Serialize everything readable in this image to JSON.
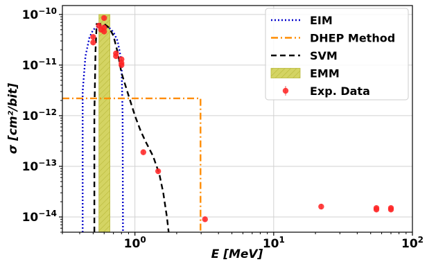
{
  "chart_data": {
    "type": "line",
    "xlabel": "E [MeV]",
    "ylabel": "σ [cm²/bit]",
    "x_scale": "log",
    "y_scale": "log",
    "xlim": [
      0.3,
      100
    ],
    "ylim": [
      5e-15,
      1.5e-10
    ],
    "grid": true,
    "legend_position": "top-right",
    "x_ticks": [
      {
        "value": 1,
        "base": "10",
        "exp": "0"
      },
      {
        "value": 10,
        "base": "10",
        "exp": "1"
      },
      {
        "value": 100,
        "base": "10",
        "exp": "2"
      }
    ],
    "y_ticks": [
      {
        "value": 1e-14,
        "base": "10",
        "exp": "−14"
      },
      {
        "value": 1e-13,
        "base": "10",
        "exp": "−13"
      },
      {
        "value": 1e-12,
        "base": "10",
        "exp": "−12"
      },
      {
        "value": 1e-11,
        "base": "10",
        "exp": "−11"
      },
      {
        "value": 1e-10,
        "base": "10",
        "exp": "−10"
      }
    ],
    "series": [
      {
        "name": "EIM",
        "kind": "line",
        "style": "dotted",
        "color": "#0000cc",
        "points": [
          [
            0.42,
            5e-15
          ],
          [
            0.42,
            3e-12
          ],
          [
            0.44,
            1.5e-11
          ],
          [
            0.47,
            3.5e-11
          ],
          [
            0.5,
            5e-11
          ],
          [
            0.55,
            6e-11
          ],
          [
            0.6,
            6e-11
          ],
          [
            0.65,
            5.5e-11
          ],
          [
            0.7,
            4.5e-11
          ],
          [
            0.75,
            3e-11
          ],
          [
            0.8,
            1.2e-11
          ],
          [
            0.815,
            1e-12
          ],
          [
            0.82,
            5e-15
          ]
        ]
      },
      {
        "name": "DHEP Method",
        "kind": "line",
        "style": "dashdot",
        "color": "#ff8c00",
        "points": [
          [
            0.3,
            2.2e-12
          ],
          [
            2.97,
            2.2e-12
          ],
          [
            2.97,
            5e-15
          ]
        ]
      },
      {
        "name": "SVM",
        "kind": "line",
        "style": "dashed",
        "color": "#000000",
        "points": [
          [
            0.51,
            5e-15
          ],
          [
            0.51,
            1e-12
          ],
          [
            0.52,
            2e-11
          ],
          [
            0.53,
            6.5e-11
          ],
          [
            0.6,
            6.5e-11
          ],
          [
            0.65,
            5.5e-11
          ],
          [
            0.7,
            3.8e-11
          ],
          [
            0.75,
            1.8e-11
          ],
          [
            0.8,
            7e-12
          ],
          [
            0.9,
            2.5e-12
          ],
          [
            1.0,
            1e-12
          ],
          [
            1.1,
            5e-13
          ],
          [
            1.2,
            3e-13
          ],
          [
            1.35,
            1.6e-13
          ],
          [
            1.5,
            7e-14
          ],
          [
            1.6,
            3e-14
          ],
          [
            1.7,
            1e-14
          ],
          [
            1.75,
            5e-15
          ]
        ]
      },
      {
        "name": "EMM",
        "kind": "band",
        "color": "#c8c800",
        "x_range": [
          0.55,
          0.66
        ],
        "y_top": 1e-10
      },
      {
        "name": "Exp. Data",
        "kind": "scatter",
        "color": "#ff2222",
        "points": [
          [
            0.5,
            3.6e-11
          ],
          [
            0.5,
            2.8e-11
          ],
          [
            0.55,
            6e-11
          ],
          [
            0.57,
            5e-11
          ],
          [
            0.6,
            5.5e-11
          ],
          [
            0.6,
            4.6e-11
          ],
          [
            0.6,
            8.5e-11
          ],
          [
            0.73,
            1.7e-11
          ],
          [
            0.73,
            1.5e-11
          ],
          [
            0.8,
            1.3e-11
          ],
          [
            0.8,
            1.1e-11
          ],
          [
            0.8,
            1e-11
          ],
          [
            1.15,
            1.9e-13
          ],
          [
            1.47,
            8e-14
          ],
          [
            3.2,
            9e-15
          ],
          [
            22,
            1.6e-14
          ],
          [
            55,
            1.5e-14
          ],
          [
            55,
            1.4e-14
          ],
          [
            70,
            1.5e-14
          ],
          [
            70,
            1.4e-14
          ]
        ]
      }
    ]
  }
}
